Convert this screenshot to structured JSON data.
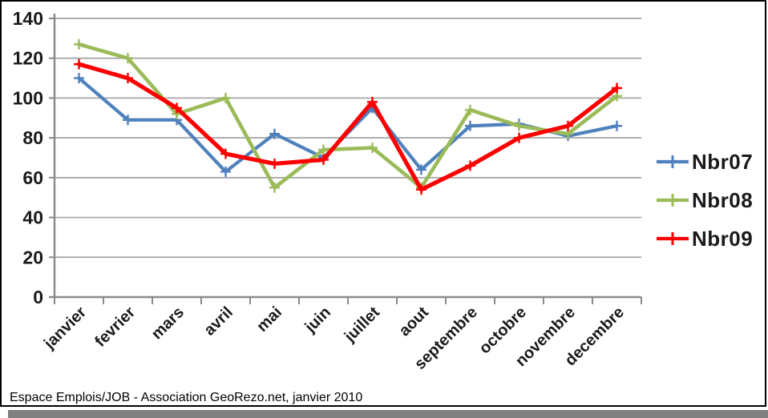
{
  "caption": "Espace Emplois/JOB - Association GeoRezo.net, janvier 2010",
  "colors": {
    "background": "#ffffff",
    "border": "#000000",
    "shadow": "#808080",
    "gridline": "#a3a3a3",
    "axis": "#8a8a8a",
    "tick_text": "#1a1a1a",
    "legend_text": "#1a1a1a",
    "series_blue": "#4F81BD",
    "series_green": "#9BBB59",
    "series_red": "#FF0000"
  },
  "chart_data": {
    "type": "line",
    "title": "",
    "xlabel": "",
    "ylabel": "",
    "categories": [
      "janvier",
      "fevrier",
      "mars",
      "avril",
      "mai",
      "juin",
      "juillet",
      "aout",
      "septembre",
      "octobre",
      "novembre",
      "decembre"
    ],
    "series": [
      {
        "name": "Nbr07",
        "color": "#4F81BD",
        "marker": "plus",
        "values": [
          110,
          89,
          89,
          63,
          82,
          70,
          95,
          64,
          86,
          87,
          81,
          86
        ]
      },
      {
        "name": "Nbr08",
        "color": "#9BBB59",
        "marker": "plus",
        "values": [
          127,
          120,
          92,
          100,
          55,
          74,
          75,
          55,
          94,
          86,
          82,
          101
        ]
      },
      {
        "name": "Nbr09",
        "color": "#FF0000",
        "marker": "plus",
        "values": [
          117,
          110,
          95,
          72,
          67,
          69,
          98,
          54,
          66,
          80,
          86,
          105
        ]
      }
    ],
    "ylim": [
      0,
      140
    ],
    "ytick_step": 20,
    "y_tick_labels": [
      "140",
      "120",
      "100",
      "80",
      "60",
      "40",
      "20",
      "0"
    ],
    "grid": true,
    "legend_position": "right",
    "x_label_rotation_deg": 45
  }
}
